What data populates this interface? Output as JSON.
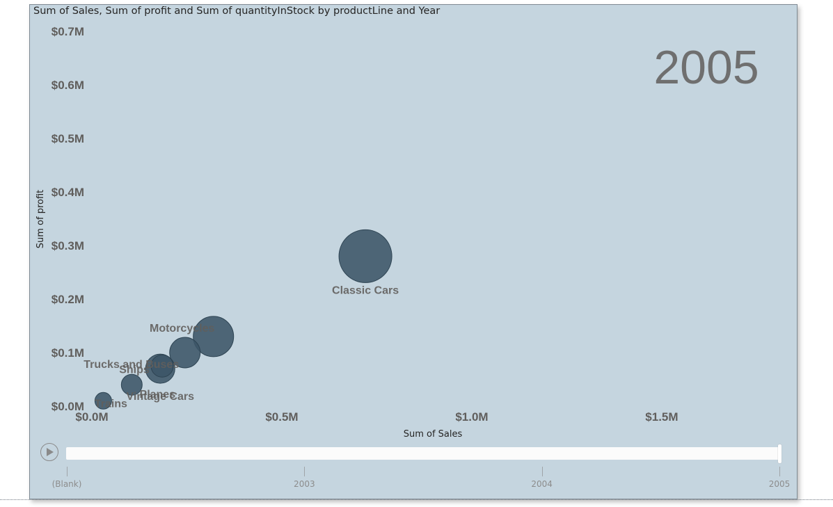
{
  "chart_data": {
    "type": "scatter",
    "title": "Sum of Sales, Sum of profit and Sum of quantityInStock by productLine and Year",
    "xlabel": "Sum of Sales",
    "ylabel": "Sum of profit",
    "size_field": "Sum of quantityInStock",
    "xlim": [
      0,
      1.85
    ],
    "ylim": [
      0,
      0.7
    ],
    "x_ticks": [
      "$0.0M",
      "$0.5M",
      "$1.0M",
      "$1.5M"
    ],
    "y_ticks": [
      "$0.0M",
      "$0.1M",
      "$0.2M",
      "$0.3M",
      "$0.4M",
      "$0.5M",
      "$0.6M",
      "$0.7M"
    ],
    "units": "$M",
    "current_year": "2005",
    "bubble_color": "#3c5568",
    "points": [
      {
        "label": "Classic Cars",
        "x": 0.72,
        "y": 0.28,
        "size": 38
      },
      {
        "label": "Motorcycles",
        "x": 0.32,
        "y": 0.13,
        "size": 29
      },
      {
        "label": "Trucks and Buses",
        "x": 0.245,
        "y": 0.1,
        "size": 22
      },
      {
        "label": "Vintage Cars",
        "x": 0.18,
        "y": 0.07,
        "size": 21
      },
      {
        "label": "Ships",
        "x": 0.185,
        "y": 0.075,
        "size": 16
      },
      {
        "label": "Planes",
        "x": 0.105,
        "y": 0.04,
        "size": 15
      },
      {
        "label": "Trains",
        "x": 0.03,
        "y": 0.01,
        "size": 12
      }
    ]
  },
  "play_axis": {
    "ticks": [
      "(Blank)",
      "2003",
      "2004",
      "2005"
    ],
    "selected": "2005",
    "selected_fraction": 1.0
  }
}
